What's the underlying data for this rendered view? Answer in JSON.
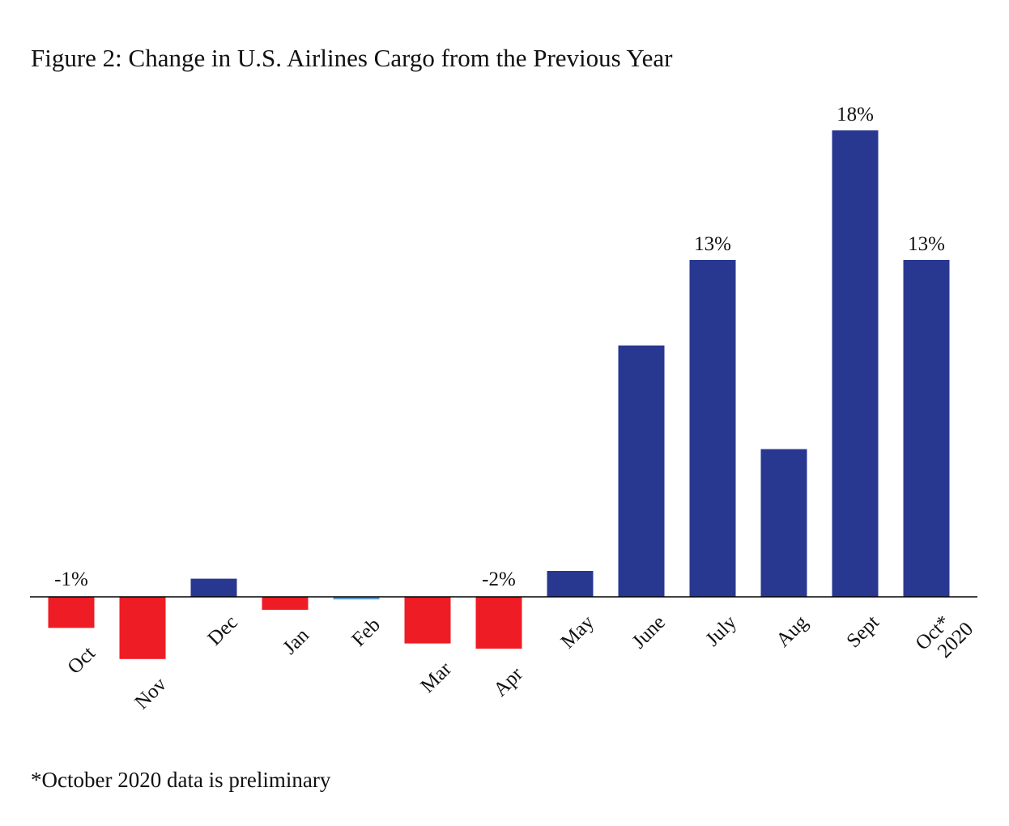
{
  "chart_data": {
    "type": "bar",
    "title": "Figure 2: Change in U.S. Airlines Cargo from the Previous Year",
    "xlabel": "",
    "ylabel": "",
    "unit": "%",
    "categories": [
      "Oct",
      "Nov",
      "Dec",
      "Jan",
      "Feb",
      "Mar",
      "Apr",
      "May",
      "June",
      "July",
      "Aug",
      "Sept",
      "Oct*\n2020"
    ],
    "values": [
      -1.2,
      -2.4,
      0.7,
      -0.5,
      -0.1,
      -1.8,
      -2.0,
      1.0,
      9.7,
      13.0,
      5.7,
      18.0,
      13.0
    ],
    "data_labels": [
      "-1%",
      "",
      "",
      "",
      "",
      "",
      "-2%",
      "",
      "",
      "13%",
      "",
      "18%",
      "13%"
    ],
    "colors": [
      "#ee1c24",
      "#ee1c24",
      "#283891",
      "#ee1c24",
      "#5b9bd5",
      "#ee1c24",
      "#ee1c24",
      "#283891",
      "#283891",
      "#283891",
      "#283891",
      "#283891",
      "#283891"
    ],
    "ylim": [
      -2.4,
      18.0
    ],
    "grid": false,
    "legend": "none"
  },
  "footnote": "*October 2020 data is preliminary"
}
